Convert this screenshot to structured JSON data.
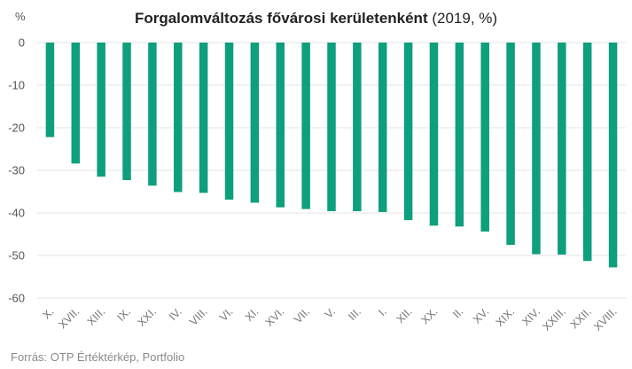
{
  "chart_data": {
    "type": "bar",
    "title_bold": "Forgalomváltozás fővárosi kerületenként",
    "title_rest": "(2019, %)",
    "unit_label": "%",
    "source": "Forrás: OTP Értéktérkép, Portfolio",
    "xlabel": "",
    "ylabel": "",
    "ylim": [
      -60,
      0
    ],
    "yticks": [
      0,
      -10,
      -20,
      -30,
      -40,
      -50,
      -60
    ],
    "grid": true,
    "bar_color": "#0e9f7d",
    "categories": [
      "X.",
      "XVII.",
      "XIII.",
      "IX.",
      "XXI.",
      "IV.",
      "VIII.",
      "VI.",
      "XI.",
      "XVI.",
      "VII.",
      "V.",
      "III.",
      "I.",
      "XII.",
      "XX.",
      "II.",
      "XV.",
      "XIX.",
      "XIV.",
      "XXIII.",
      "XXII.",
      "XVIII."
    ],
    "values": [
      -22.2,
      -28.4,
      -31.5,
      -32.3,
      -33.6,
      -35.1,
      -35.3,
      -36.9,
      -37.6,
      -38.7,
      -39.1,
      -39.6,
      -39.6,
      -39.8,
      -41.7,
      -43.0,
      -43.2,
      -44.4,
      -47.5,
      -49.7,
      -49.8,
      -51.3,
      -52.8
    ]
  }
}
